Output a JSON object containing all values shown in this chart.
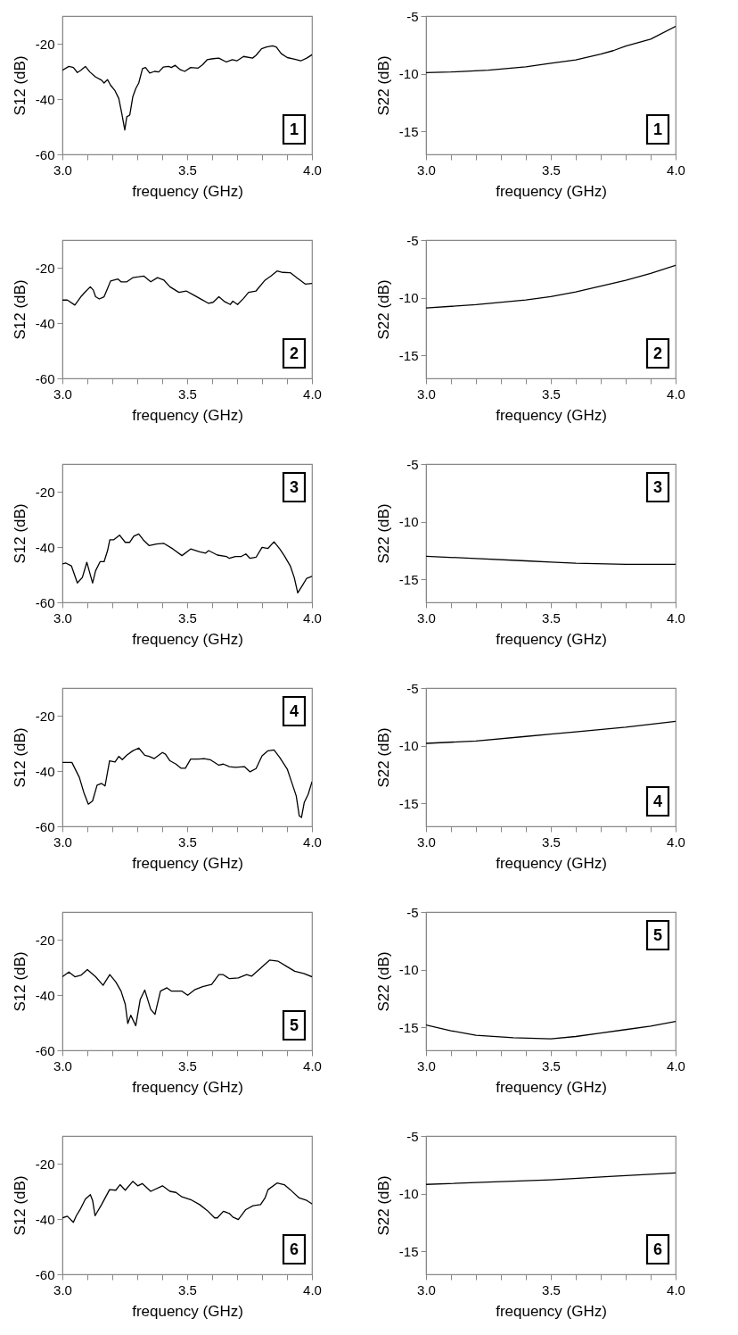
{
  "chart_data": [
    {
      "type": "line",
      "xlabel": "frequency (GHz)",
      "ylabel": "S12 (dB)",
      "xlim": [
        3,
        4
      ],
      "xticks": [
        {
          "value": 3,
          "label": "3.0"
        },
        {
          "value": 3.1,
          "label": null
        },
        {
          "value": 3.2,
          "label": null
        },
        {
          "value": 3.3,
          "label": null
        },
        {
          "value": 3.4,
          "label": null
        },
        {
          "value": 3.5,
          "label": "3.5"
        },
        {
          "value": 3.6,
          "label": null
        },
        {
          "value": 3.7,
          "label": null
        },
        {
          "value": 3.8,
          "label": null
        },
        {
          "value": 3.9,
          "label": null
        },
        {
          "value": 4,
          "label": "4.0"
        }
      ],
      "ylim": [
        -60,
        -10
      ],
      "yticks": [
        -60,
        -40,
        -20
      ],
      "annotations": [
        "1"
      ],
      "series": [
        {
          "color": "#000000",
          "x": [
            3.0,
            3.026,
            3.044,
            3.06,
            3.074,
            3.092,
            3.11,
            3.133,
            3.157,
            3.167,
            3.181,
            3.193,
            3.211,
            3.226,
            3.238,
            3.25,
            3.258,
            3.27,
            3.282,
            3.294,
            3.306,
            3.321,
            3.333,
            3.35,
            3.369,
            3.386,
            3.405,
            3.425,
            3.437,
            3.452,
            3.473,
            3.49,
            3.514,
            3.544,
            3.562,
            3.58,
            3.604,
            3.627,
            3.657,
            3.681,
            3.699,
            3.726,
            3.762,
            3.776,
            3.798,
            3.818,
            3.842,
            3.857,
            3.877,
            3.901,
            3.931,
            3.955,
            3.979,
            4.0
          ],
          "values": [
            -29.6,
            -28.2,
            -28.6,
            -30.4,
            -29.6,
            -28.2,
            -30.2,
            -32,
            -33.2,
            -34.2,
            -33,
            -35,
            -37,
            -39.8,
            -45.2,
            -51.2,
            -46.4,
            -45.8,
            -39.2,
            -36.2,
            -34.2,
            -29,
            -28.6,
            -30.6,
            -30,
            -30.2,
            -28.4,
            -28.2,
            -28.6,
            -27.8,
            -29.4,
            -30,
            -28.6,
            -28.8,
            -27.6,
            -25.8,
            -25.4,
            -25.2,
            -26.6,
            -25.8,
            -26.2,
            -24.6,
            -25.2,
            -24.2,
            -21.8,
            -21.2,
            -20.8,
            -21.2,
            -23.6,
            -25,
            -25.6,
            -26.2,
            -25.2,
            -24
          ]
        }
      ]
    },
    {
      "type": "line",
      "xlabel": "frequency (GHz)",
      "ylabel": "S22 (dB)",
      "xlim": [
        3,
        4
      ],
      "xticks": [
        {
          "value": 3,
          "label": "3.0"
        },
        {
          "value": 3.1,
          "label": null
        },
        {
          "value": 3.2,
          "label": null
        },
        {
          "value": 3.3,
          "label": null
        },
        {
          "value": 3.4,
          "label": null
        },
        {
          "value": 3.5,
          "label": "3.5"
        },
        {
          "value": 3.6,
          "label": null
        },
        {
          "value": 3.7,
          "label": null
        },
        {
          "value": 3.8,
          "label": null
        },
        {
          "value": 3.9,
          "label": null
        },
        {
          "value": 4,
          "label": "4.0"
        }
      ],
      "ylim": [
        -17,
        -5
      ],
      "yticks": [
        -15,
        -10,
        -5
      ],
      "annotations": [
        "1"
      ],
      "series": [
        {
          "color": "#000000",
          "x": [
            3.0,
            3.1,
            3.25,
            3.4,
            3.5,
            3.6,
            3.7,
            3.75,
            3.8,
            3.9,
            4.0
          ],
          "values": [
            -9.9,
            -9.85,
            -9.7,
            -9.4,
            -9.1,
            -8.8,
            -8.3,
            -8.0,
            -7.6,
            -7.0,
            -5.9
          ]
        }
      ]
    },
    {
      "type": "line",
      "xlabel": "frequency (GHz)",
      "ylabel": "S12 (dB)",
      "xlim": [
        3,
        4
      ],
      "xticks": [
        {
          "value": 3,
          "label": "3.0"
        },
        {
          "value": 3.1,
          "label": null
        },
        {
          "value": 3.2,
          "label": null
        },
        {
          "value": 3.3,
          "label": null
        },
        {
          "value": 3.4,
          "label": null
        },
        {
          "value": 3.5,
          "label": "3.5"
        },
        {
          "value": 3.6,
          "label": null
        },
        {
          "value": 3.7,
          "label": null
        },
        {
          "value": 3.8,
          "label": null
        },
        {
          "value": 3.9,
          "label": null
        },
        {
          "value": 4,
          "label": "4.0"
        }
      ],
      "ylim": [
        -60,
        -10
      ],
      "yticks": [
        -60,
        -40,
        -20
      ],
      "annotations": [
        "2"
      ],
      "series": [
        {
          "color": "#000000",
          "x": [
            3.0,
            3.02,
            3.05,
            3.074,
            3.092,
            3.112,
            3.124,
            3.133,
            3.148,
            3.167,
            3.181,
            3.193,
            3.223,
            3.235,
            3.258,
            3.282,
            3.306,
            3.326,
            3.354,
            3.381,
            3.407,
            3.431,
            3.467,
            3.496,
            3.526,
            3.55,
            3.586,
            3.604,
            3.627,
            3.651,
            3.673,
            3.683,
            3.702,
            3.726,
            3.746,
            3.776,
            3.812,
            3.836,
            3.86,
            3.883,
            3.913,
            3.943,
            3.973,
            4.0
          ],
          "values": [
            -31.7,
            -31.7,
            -33.5,
            -30.5,
            -28.7,
            -26.9,
            -28.1,
            -30.5,
            -31.3,
            -30.5,
            -27.5,
            -24.8,
            -24.1,
            -25.1,
            -25.1,
            -23.6,
            -23.3,
            -23,
            -25.1,
            -23.6,
            -24.5,
            -26.9,
            -28.9,
            -28.4,
            -29.9,
            -31.1,
            -32.9,
            -32.5,
            -30.5,
            -32.3,
            -33.3,
            -32.1,
            -33.3,
            -31.1,
            -28.9,
            -28.4,
            -24.5,
            -23,
            -21.2,
            -21.7,
            -21.8,
            -23.9,
            -25.9,
            -25.7
          ]
        }
      ]
    },
    {
      "type": "line",
      "xlabel": "frequency (GHz)",
      "ylabel": "S22 (dB)",
      "xlim": [
        3,
        4
      ],
      "xticks": [
        {
          "value": 3,
          "label": "3.0"
        },
        {
          "value": 3.1,
          "label": null
        },
        {
          "value": 3.2,
          "label": null
        },
        {
          "value": 3.3,
          "label": null
        },
        {
          "value": 3.4,
          "label": null
        },
        {
          "value": 3.5,
          "label": "3.5"
        },
        {
          "value": 3.6,
          "label": null
        },
        {
          "value": 3.7,
          "label": null
        },
        {
          "value": 3.8,
          "label": null
        },
        {
          "value": 3.9,
          "label": null
        },
        {
          "value": 4,
          "label": "4.0"
        }
      ],
      "ylim": [
        -17,
        -5
      ],
      "yticks": [
        -15,
        -10,
        -5
      ],
      "annotations": [
        "2"
      ],
      "series": [
        {
          "color": "#000000",
          "x": [
            3.0,
            3.2,
            3.4,
            3.5,
            3.6,
            3.7,
            3.8,
            3.9,
            4.0
          ],
          "values": [
            -10.9,
            -10.6,
            -10.2,
            -9.9,
            -9.5,
            -9.0,
            -8.5,
            -7.9,
            -7.2
          ]
        }
      ]
    },
    {
      "type": "line",
      "xlabel": "frequency (GHz)",
      "ylabel": "S12 (dB)",
      "xlim": [
        3,
        4
      ],
      "xticks": [
        {
          "value": 3,
          "label": "3.0"
        },
        {
          "value": 3.1,
          "label": null
        },
        {
          "value": 3.2,
          "label": null
        },
        {
          "value": 3.3,
          "label": null
        },
        {
          "value": 3.4,
          "label": null
        },
        {
          "value": 3.5,
          "label": "3.5"
        },
        {
          "value": 3.6,
          "label": null
        },
        {
          "value": 3.7,
          "label": null
        },
        {
          "value": 3.8,
          "label": null
        },
        {
          "value": 3.9,
          "label": null
        },
        {
          "value": 4,
          "label": "4.0"
        }
      ],
      "ylim": [
        -60,
        -10
      ],
      "yticks": [
        -60,
        -40,
        -20
      ],
      "annotations": [
        "3"
      ],
      "series": [
        {
          "color": "#000000",
          "x": [
            3.0,
            3.014,
            3.036,
            3.06,
            3.08,
            3.098,
            3.121,
            3.133,
            3.151,
            3.167,
            3.181,
            3.19,
            3.205,
            3.229,
            3.252,
            3.27,
            3.286,
            3.306,
            3.324,
            3.348,
            3.377,
            3.407,
            3.443,
            3.479,
            3.514,
            3.55,
            3.574,
            3.586,
            3.621,
            3.657,
            3.669,
            3.693,
            3.717,
            3.735,
            3.752,
            3.776,
            3.8,
            3.824,
            3.848,
            3.871,
            3.889,
            3.913,
            3.929,
            3.943,
            3.961,
            3.979,
            4.0
          ],
          "values": [
            -46.1,
            -45.8,
            -46.8,
            -53,
            -51,
            -45.5,
            -53,
            -48.6,
            -45.3,
            -45.3,
            -41.3,
            -37.4,
            -37.4,
            -35.7,
            -38.3,
            -38.3,
            -36.1,
            -35.3,
            -37.4,
            -39.5,
            -38.9,
            -38.7,
            -40.7,
            -43.1,
            -40.7,
            -41.7,
            -42.2,
            -41.3,
            -42.9,
            -43.4,
            -44.1,
            -43.4,
            -43.4,
            -42.5,
            -44.1,
            -43.7,
            -40.1,
            -40.5,
            -38.1,
            -40.7,
            -43.1,
            -46.8,
            -51,
            -56.6,
            -54,
            -51.3,
            -50.6
          ]
        }
      ]
    },
    {
      "type": "line",
      "xlabel": "frequency (GHz)",
      "ylabel": "S22 (dB)",
      "xlim": [
        3,
        4
      ],
      "xticks": [
        {
          "value": 3,
          "label": "3.0"
        },
        {
          "value": 3.1,
          "label": null
        },
        {
          "value": 3.2,
          "label": null
        },
        {
          "value": 3.3,
          "label": null
        },
        {
          "value": 3.4,
          "label": null
        },
        {
          "value": 3.5,
          "label": "3.5"
        },
        {
          "value": 3.6,
          "label": null
        },
        {
          "value": 3.7,
          "label": null
        },
        {
          "value": 3.8,
          "label": null
        },
        {
          "value": 3.9,
          "label": null
        },
        {
          "value": 4,
          "label": "4.0"
        }
      ],
      "ylim": [
        -17,
        -5
      ],
      "yticks": [
        -15,
        -10,
        -5
      ],
      "annotations": [
        "3"
      ],
      "series": [
        {
          "color": "#000000",
          "x": [
            3.0,
            3.2,
            3.4,
            3.5,
            3.6,
            3.8,
            4.0
          ],
          "values": [
            -13.0,
            -13.2,
            -13.4,
            -13.5,
            -13.6,
            -13.7,
            -13.7
          ]
        }
      ]
    },
    {
      "type": "line",
      "xlabel": "frequency (GHz)",
      "ylabel": "S12 (dB)",
      "xlim": [
        3,
        4
      ],
      "xticks": [
        {
          "value": 3,
          "label": "3.0"
        },
        {
          "value": 3.1,
          "label": null
        },
        {
          "value": 3.2,
          "label": null
        },
        {
          "value": 3.3,
          "label": null
        },
        {
          "value": 3.4,
          "label": null
        },
        {
          "value": 3.5,
          "label": "3.5"
        },
        {
          "value": 3.6,
          "label": null
        },
        {
          "value": 3.7,
          "label": null
        },
        {
          "value": 3.8,
          "label": null
        },
        {
          "value": 3.9,
          "label": null
        },
        {
          "value": 4,
          "label": "4.0"
        }
      ],
      "ylim": [
        -60,
        -10
      ],
      "yticks": [
        -60,
        -40,
        -20
      ],
      "annotations": [
        "4"
      ],
      "series": [
        {
          "color": "#000000",
          "x": [
            3.0,
            3.038,
            3.068,
            3.086,
            3.104,
            3.121,
            3.139,
            3.157,
            3.171,
            3.189,
            3.211,
            3.226,
            3.24,
            3.258,
            3.282,
            3.306,
            3.33,
            3.348,
            3.368,
            3.401,
            3.413,
            3.431,
            3.455,
            3.476,
            3.493,
            3.514,
            3.544,
            3.568,
            3.592,
            3.627,
            3.645,
            3.669,
            3.693,
            3.729,
            3.752,
            3.776,
            3.8,
            3.824,
            3.848,
            3.871,
            3.901,
            3.917,
            3.937,
            3.949,
            3.958,
            3.969,
            3.985,
            4.0
          ],
          "values": [
            -36.9,
            -36.9,
            -42.3,
            -47.8,
            -52,
            -50.8,
            -45.1,
            -44.5,
            -45.4,
            -36.3,
            -36.7,
            -34.7,
            -35.9,
            -34.3,
            -32.7,
            -31.7,
            -34.3,
            -34.7,
            -35.5,
            -33.3,
            -33.9,
            -36.3,
            -37.5,
            -39,
            -39,
            -35.7,
            -35.7,
            -35.5,
            -35.9,
            -37.9,
            -37.5,
            -38.4,
            -38.7,
            -38.4,
            -40.3,
            -39.1,
            -34.5,
            -32.7,
            -32.4,
            -35.1,
            -39.3,
            -43.6,
            -49,
            -56.2,
            -56.8,
            -51.4,
            -48.4,
            -43.9
          ]
        }
      ]
    },
    {
      "type": "line",
      "xlabel": "frequency (GHz)",
      "ylabel": "S22 (dB)",
      "xlim": [
        3,
        4
      ],
      "xticks": [
        {
          "value": 3,
          "label": "3.0"
        },
        {
          "value": 3.1,
          "label": null
        },
        {
          "value": 3.2,
          "label": null
        },
        {
          "value": 3.3,
          "label": null
        },
        {
          "value": 3.4,
          "label": null
        },
        {
          "value": 3.5,
          "label": "3.5"
        },
        {
          "value": 3.6,
          "label": null
        },
        {
          "value": 3.7,
          "label": null
        },
        {
          "value": 3.8,
          "label": null
        },
        {
          "value": 3.9,
          "label": null
        },
        {
          "value": 4,
          "label": "4.0"
        }
      ],
      "ylim": [
        -17,
        -5
      ],
      "yticks": [
        -15,
        -10,
        -5
      ],
      "annotations": [
        "4"
      ],
      "series": [
        {
          "color": "#000000",
          "x": [
            3.0,
            3.2,
            3.4,
            3.5,
            3.6,
            3.8,
            4.0
          ],
          "values": [
            -9.8,
            -9.6,
            -9.2,
            -9.0,
            -8.8,
            -8.4,
            -7.9
          ]
        }
      ]
    },
    {
      "type": "line",
      "xlabel": "frequency (GHz)",
      "ylabel": "S12 (dB)",
      "xlim": [
        3,
        4
      ],
      "xticks": [
        {
          "value": 3,
          "label": "3.0"
        },
        {
          "value": 3.1,
          "label": null
        },
        {
          "value": 3.2,
          "label": null
        },
        {
          "value": 3.3,
          "label": null
        },
        {
          "value": 3.4,
          "label": null
        },
        {
          "value": 3.5,
          "label": "3.5"
        },
        {
          "value": 3.6,
          "label": null
        },
        {
          "value": 3.7,
          "label": null
        },
        {
          "value": 3.8,
          "label": null
        },
        {
          "value": 3.9,
          "label": null
        },
        {
          "value": 4,
          "label": "4.0"
        }
      ],
      "ylim": [
        -60,
        -10
      ],
      "yticks": [
        -60,
        -40,
        -20
      ],
      "annotations": [
        "5"
      ],
      "series": [
        {
          "color": "#000000",
          "x": [
            3.0,
            3.026,
            3.05,
            3.074,
            3.1,
            3.133,
            3.163,
            3.19,
            3.214,
            3.235,
            3.252,
            3.262,
            3.274,
            3.294,
            3.312,
            3.33,
            3.354,
            3.371,
            3.393,
            3.419,
            3.437,
            3.479,
            3.502,
            3.532,
            3.562,
            3.598,
            3.627,
            3.643,
            3.669,
            3.705,
            3.738,
            3.758,
            3.788,
            3.83,
            3.865,
            3.901,
            3.931,
            3.967,
            4.0
          ],
          "values": [
            -33.4,
            -31.7,
            -33.4,
            -32.9,
            -30.8,
            -33.4,
            -36.5,
            -32.6,
            -35.3,
            -38.6,
            -43.4,
            -50.3,
            -47.3,
            -51.1,
            -41.6,
            -38.2,
            -45.2,
            -47,
            -38.6,
            -37.4,
            -38.6,
            -38.6,
            -40.1,
            -38,
            -37,
            -36.2,
            -32.6,
            -32.6,
            -34.1,
            -33.8,
            -32.6,
            -33.2,
            -30.8,
            -27.4,
            -27.8,
            -29.8,
            -31.4,
            -32.2,
            -33.4
          ]
        }
      ]
    },
    {
      "type": "line",
      "xlabel": "frequency (GHz)",
      "ylabel": "S22 (dB)",
      "xlim": [
        3,
        4
      ],
      "xticks": [
        {
          "value": 3,
          "label": "3.0"
        },
        {
          "value": 3.1,
          "label": null
        },
        {
          "value": 3.2,
          "label": null
        },
        {
          "value": 3.3,
          "label": null
        },
        {
          "value": 3.4,
          "label": null
        },
        {
          "value": 3.5,
          "label": "3.5"
        },
        {
          "value": 3.6,
          "label": null
        },
        {
          "value": 3.7,
          "label": null
        },
        {
          "value": 3.8,
          "label": null
        },
        {
          "value": 3.9,
          "label": null
        },
        {
          "value": 4,
          "label": "4.0"
        }
      ],
      "ylim": [
        -17,
        -5
      ],
      "yticks": [
        -15,
        -10,
        -5
      ],
      "annotations": [
        "5"
      ],
      "series": [
        {
          "color": "#000000",
          "x": [
            3.0,
            3.1,
            3.2,
            3.35,
            3.5,
            3.6,
            3.7,
            3.8,
            3.9,
            4.0
          ],
          "values": [
            -14.8,
            -15.3,
            -15.7,
            -15.9,
            -16.0,
            -15.8,
            -15.5,
            -15.2,
            -14.9,
            -14.5
          ]
        }
      ]
    },
    {
      "type": "line",
      "xlabel": "frequency (GHz)",
      "ylabel": "S12 (dB)",
      "xlim": [
        3,
        4
      ],
      "xticks": [
        {
          "value": 3,
          "label": "3.0"
        },
        {
          "value": 3.1,
          "label": null
        },
        {
          "value": 3.2,
          "label": null
        },
        {
          "value": 3.3,
          "label": null
        },
        {
          "value": 3.4,
          "label": null
        },
        {
          "value": 3.5,
          "label": "3.5"
        },
        {
          "value": 3.6,
          "label": null
        },
        {
          "value": 3.7,
          "label": null
        },
        {
          "value": 3.8,
          "label": null
        },
        {
          "value": 3.9,
          "label": null
        },
        {
          "value": 4,
          "label": "4.0"
        }
      ],
      "ylim": [
        -60,
        -10
      ],
      "yticks": [
        -60,
        -40,
        -20
      ],
      "annotations": [
        "6"
      ],
      "series": [
        {
          "color": "#000000",
          "x": [
            3.0,
            3.02,
            3.044,
            3.056,
            3.071,
            3.092,
            3.112,
            3.121,
            3.131,
            3.157,
            3.189,
            3.214,
            3.231,
            3.252,
            3.282,
            3.302,
            3.32,
            3.354,
            3.401,
            3.431,
            3.455,
            3.479,
            3.514,
            3.55,
            3.58,
            3.61,
            3.621,
            3.645,
            3.669,
            3.683,
            3.705,
            3.735,
            3.764,
            3.794,
            3.812,
            3.824,
            3.86,
            3.889,
            3.913,
            3.949,
            3.979,
            4.0
          ],
          "values": [
            -39.6,
            -39,
            -41.2,
            -38.8,
            -36.6,
            -32.8,
            -31.2,
            -33.3,
            -38.8,
            -34.8,
            -29.4,
            -29.6,
            -27.6,
            -29.6,
            -26.4,
            -28,
            -27.2,
            -30,
            -28,
            -30,
            -30.4,
            -32,
            -33,
            -34.8,
            -36.9,
            -39.6,
            -39.6,
            -37.2,
            -38,
            -39.3,
            -40.2,
            -36.6,
            -35.2,
            -34.8,
            -32.4,
            -29.4,
            -27,
            -27.6,
            -29.4,
            -32.4,
            -33.3,
            -34.5
          ]
        }
      ]
    },
    {
      "type": "line",
      "xlabel": "frequency (GHz)",
      "ylabel": "S22 (dB)",
      "xlim": [
        3,
        4
      ],
      "xticks": [
        {
          "value": 3,
          "label": "3.0"
        },
        {
          "value": 3.1,
          "label": null
        },
        {
          "value": 3.2,
          "label": null
        },
        {
          "value": 3.3,
          "label": null
        },
        {
          "value": 3.4,
          "label": null
        },
        {
          "value": 3.5,
          "label": "3.5"
        },
        {
          "value": 3.6,
          "label": null
        },
        {
          "value": 3.7,
          "label": null
        },
        {
          "value": 3.8,
          "label": null
        },
        {
          "value": 3.9,
          "label": null
        },
        {
          "value": 4,
          "label": "4.0"
        }
      ],
      "ylim": [
        -17,
        -5
      ],
      "yticks": [
        -15,
        -10,
        -5
      ],
      "annotations": [
        "6"
      ],
      "series": [
        {
          "color": "#000000",
          "x": [
            3.0,
            3.25,
            3.5,
            3.75,
            4.0
          ],
          "values": [
            -9.2,
            -9.0,
            -8.8,
            -8.5,
            -8.2
          ]
        }
      ]
    }
  ]
}
